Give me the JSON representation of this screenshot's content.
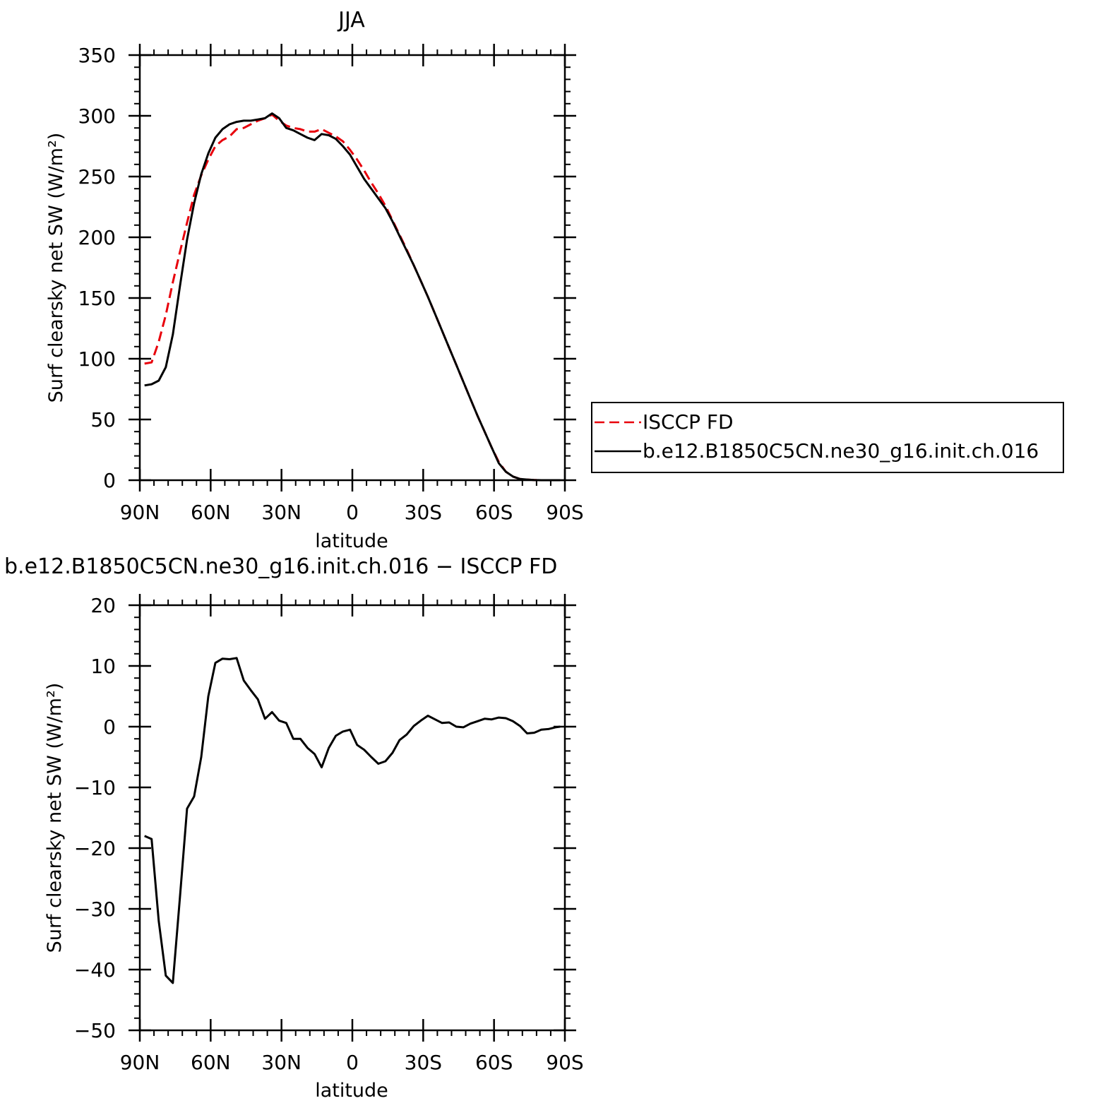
{
  "chart_data": [
    {
      "type": "line",
      "title": "JJA",
      "xlabel": "latitude",
      "ylabel": "Surf clearsky net SW (W/m²)",
      "xlim": [
        90,
        -90
      ],
      "ylim": [
        0,
        350
      ],
      "xticks": [
        90,
        60,
        30,
        0,
        -30,
        -60,
        -90
      ],
      "xtick_labels": [
        "90N",
        "60N",
        "30N",
        "0",
        "30S",
        "60S",
        "90S"
      ],
      "yticks": [
        0,
        50,
        100,
        150,
        200,
        250,
        300,
        350
      ],
      "ytick_labels": [
        "0",
        "50",
        "100",
        "150",
        "200",
        "250",
        "300",
        "350"
      ],
      "legend": "right",
      "grid": false,
      "series": [
        {
          "name": "ISCCP FD",
          "color": "#e8000b",
          "dash": "dashed",
          "x": [
            88,
            85,
            82,
            79,
            76,
            73,
            70,
            67,
            64,
            61,
            58,
            55,
            52,
            49,
            46,
            43,
            40,
            37,
            34,
            31,
            28,
            25,
            22,
            19,
            16,
            13,
            10,
            7,
            4,
            1,
            -2,
            -5,
            -8,
            -11,
            -14,
            -17,
            -20,
            -23,
            -26,
            -29,
            -32,
            -35,
            -38,
            -41,
            -44,
            -47,
            -50,
            -53,
            -56,
            -59,
            -62,
            -65,
            -68,
            -71,
            -74,
            -77,
            -80,
            -83,
            -86,
            -88
          ],
          "y": [
            96,
            97,
            114,
            136,
            163,
            188,
            212,
            235,
            251,
            264,
            275,
            280,
            283,
            289,
            290,
            293,
            296,
            298,
            301,
            296,
            292,
            290,
            289,
            287,
            287,
            289,
            286,
            283,
            279,
            272,
            264,
            255,
            245,
            236,
            226,
            214,
            202,
            190,
            177,
            164,
            151,
            137,
            123,
            109,
            95,
            81,
            67,
            53,
            40,
            27,
            15,
            7,
            3,
            1,
            0.5,
            0.2,
            0,
            0,
            0,
            0
          ]
        },
        {
          "name": "b.e12.B1850C5CN.ne30_g16.init.ch.016",
          "color": "#000000",
          "dash": "solid",
          "x": [
            88,
            85,
            82,
            79,
            76,
            73,
            70,
            67,
            64,
            61,
            58,
            55,
            52,
            49,
            46,
            43,
            40,
            37,
            34,
            31,
            28,
            25,
            22,
            19,
            16,
            13,
            10,
            7,
            4,
            1,
            -2,
            -5,
            -8,
            -11,
            -14,
            -17,
            -20,
            -23,
            -26,
            -29,
            -32,
            -35,
            -38,
            -41,
            -44,
            -47,
            -50,
            -53,
            -56,
            -59,
            -62,
            -65,
            -68,
            -71,
            -74,
            -77,
            -80,
            -83,
            -86,
            -88
          ],
          "y": [
            78,
            79,
            82,
            93,
            120,
            160,
            198,
            228,
            252,
            269,
            282,
            289,
            293,
            295,
            296,
            296,
            297,
            298,
            302,
            298,
            290,
            288,
            285,
            282,
            280,
            285,
            284,
            281,
            275,
            268,
            258,
            248,
            240,
            232,
            224,
            213,
            201,
            189,
            177,
            164,
            151,
            137,
            123,
            109,
            95,
            81,
            67,
            53,
            40,
            27,
            14,
            7,
            3,
            1,
            0.5,
            0.2,
            0,
            0,
            0,
            0
          ]
        }
      ]
    },
    {
      "type": "line",
      "title": "b.e12.B1850C5CN.ne30_g16.init.ch.016 − ISCCP FD",
      "xlabel": "latitude",
      "ylabel": "Surf clearsky net SW (W/m²)",
      "xlim": [
        90,
        -90
      ],
      "ylim": [
        -50,
        20
      ],
      "xticks": [
        90,
        60,
        30,
        0,
        -30,
        -60,
        -90
      ],
      "xtick_labels": [
        "90N",
        "60N",
        "30N",
        "0",
        "30S",
        "60S",
        "90S"
      ],
      "yticks": [
        -50,
        -40,
        -30,
        -20,
        -10,
        0,
        10,
        20
      ],
      "ytick_labels": [
        "−50",
        "−40",
        "−30",
        "−20",
        "−10",
        "0",
        "10",
        "20"
      ],
      "grid": false,
      "series": [
        {
          "color": "#000000",
          "dash": "solid",
          "x": [
            88,
            85,
            82,
            79,
            76,
            73,
            70,
            67,
            64,
            61,
            58,
            55,
            52,
            49,
            46,
            43,
            40,
            37,
            34,
            31,
            28,
            25,
            22,
            19,
            16,
            13,
            10,
            7,
            4,
            1,
            -2,
            -5,
            -8,
            -11,
            -14,
            -17,
            -20,
            -23,
            -26,
            -29,
            -32,
            -35,
            -38,
            -41,
            -44,
            -47,
            -50,
            -53,
            -56,
            -59,
            -62,
            -65,
            -68,
            -71,
            -74,
            -77,
            -80,
            -83,
            -86,
            -88
          ],
          "y": [
            -18,
            -18.5,
            -32,
            -41,
            -42.2,
            -28,
            -13.5,
            -11.5,
            -5,
            5,
            10.5,
            11.2,
            11.1,
            11.3,
            7.6,
            6,
            4.5,
            1.3,
            2.4,
            1,
            0.6,
            -2,
            -2,
            -3.5,
            -4.5,
            -6.7,
            -3.5,
            -1.5,
            -0.8,
            -0.5,
            -3,
            -3.8,
            -5,
            -6.1,
            -5.7,
            -4.3,
            -2.2,
            -1.3,
            0.1,
            1,
            1.8,
            1.2,
            0.6,
            0.7,
            0,
            -0.1,
            0.5,
            0.9,
            1.3,
            1.2,
            1.5,
            1.4,
            0.9,
            0.1,
            -1.1,
            -1,
            -0.5,
            -0.4,
            -0.1,
            0
          ]
        }
      ]
    }
  ]
}
